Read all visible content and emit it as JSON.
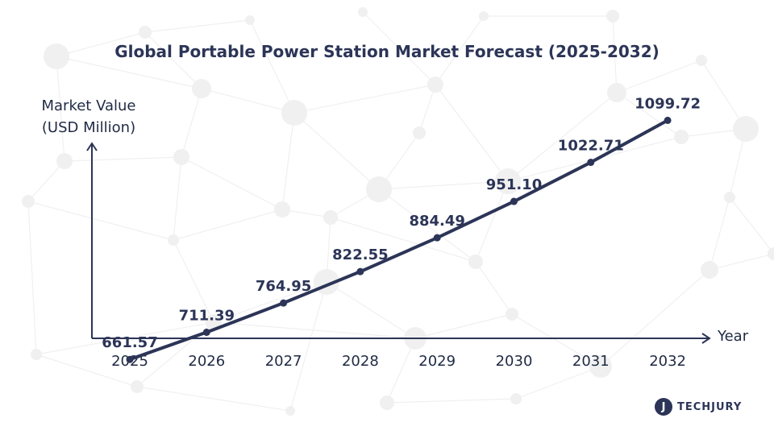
{
  "chart_data": {
    "type": "line",
    "title": "Global Portable Power Station Market Forecast (2025-2032)",
    "ylabel_lines": [
      "Market Value",
      "(USD Million)"
    ],
    "xlabel": "Year",
    "categories": [
      "2025",
      "2026",
      "2027",
      "2028",
      "2029",
      "2030",
      "2031",
      "2032"
    ],
    "values": [
      661.57,
      711.39,
      764.95,
      822.55,
      884.49,
      951.1,
      1022.71,
      1099.72
    ],
    "value_labels": [
      "661.57",
      "711.39",
      "764.95",
      "822.55",
      "884.49",
      "951.10",
      "1022.71",
      "1099.72"
    ],
    "ylim": [
      560,
      1180
    ],
    "grid": false,
    "legend": "none"
  },
  "colors": {
    "line": "#2c3557",
    "axis": "#2c3557",
    "text": "#1f2a44",
    "network": "#f0f0f0"
  },
  "brand": {
    "logo_text": "TECHJURY",
    "icon": "techjury-logo-icon"
  }
}
